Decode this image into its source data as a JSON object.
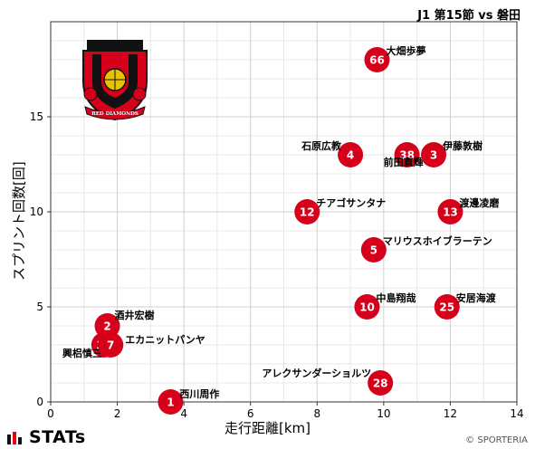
{
  "header": {
    "title": "J1 第15節 vs 磐田"
  },
  "footer": {
    "brand": "STATs",
    "credit": "© SPORTERIA"
  },
  "crest": {
    "text": "RED DIAMONDS",
    "colors": {
      "red": "#d7001b",
      "black": "#111111",
      "gold": "#e8c100"
    }
  },
  "colors": {
    "marker": "#d7001b",
    "marker_text": "#ffffff",
    "grid_major": "#cfcfcf",
    "grid_minor": "#e8e8e8",
    "axis": "#333333"
  },
  "chart_data": {
    "type": "scatter",
    "xlabel": "走行距離[km]",
    "ylabel": "スプリント回数[回]",
    "xlim": [
      0,
      14
    ],
    "ylim": [
      0,
      20
    ],
    "xticks": [
      0,
      2,
      4,
      6,
      8,
      10,
      12,
      14
    ],
    "yticks": [
      0,
      5,
      10,
      15
    ],
    "grid": true,
    "points": [
      {
        "number": "66",
        "name": "大畑歩夢",
        "x": 9.8,
        "y": 18
      },
      {
        "number": "4",
        "name": "石原広教",
        "x": 9.0,
        "y": 13
      },
      {
        "number": "38",
        "name": "前田直輝",
        "x": 10.7,
        "y": 13
      },
      {
        "number": "3",
        "name": "伊藤敦樹",
        "x": 11.5,
        "y": 13
      },
      {
        "number": "12",
        "name": "チアゴサンタナ",
        "x": 7.7,
        "y": 10
      },
      {
        "number": "13",
        "name": "渡邊凌磨",
        "x": 12.0,
        "y": 10
      },
      {
        "number": "5",
        "name": "マリウスホイブラーテン",
        "x": 9.7,
        "y": 8
      },
      {
        "number": "10",
        "name": "中島翔哉",
        "x": 9.5,
        "y": 5
      },
      {
        "number": "25",
        "name": "安居海渡",
        "x": 11.9,
        "y": 5
      },
      {
        "number": "2",
        "name": "酒井宏樹",
        "x": 1.7,
        "y": 4
      },
      {
        "number": "30",
        "name": "興梠慎三",
        "x": 1.6,
        "y": 3
      },
      {
        "number": "7",
        "name": "エカニットパンヤ",
        "x": 1.8,
        "y": 3
      },
      {
        "number": "28",
        "name": "アレクサンダーショルツ",
        "x": 9.9,
        "y": 1
      },
      {
        "number": "1",
        "name": "西川周作",
        "x": 3.6,
        "y": 0
      }
    ]
  }
}
